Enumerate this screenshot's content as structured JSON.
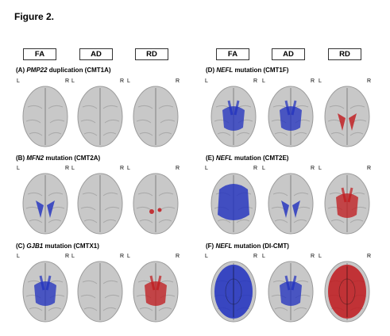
{
  "figure": {
    "title": "Figure 2."
  },
  "left_columns": [
    "FA",
    "AD",
    "RD"
  ],
  "right_columns": [
    "FA",
    "AD",
    "RD"
  ],
  "side_labels": {
    "left": "L",
    "right": "R"
  },
  "panels": [
    {
      "id": "A",
      "prefix": "(A) ",
      "gene": "PMP22",
      "suffix": " duplication (CMT1A)",
      "overlays": [
        "none",
        "none",
        "none"
      ]
    },
    {
      "id": "B",
      "prefix": "(B) ",
      "gene": "MFN2",
      "suffix": " mutation (CMT2A)",
      "overlays": [
        "blue-small",
        "none",
        "red-tiny"
      ]
    },
    {
      "id": "C",
      "prefix": "(C) ",
      "gene": "GJB1",
      "suffix": " mutation (CMTX1)",
      "overlays": [
        "blue-medium",
        "none",
        "red-medium"
      ]
    },
    {
      "id": "D",
      "prefix": "(D) ",
      "gene": "NEFL",
      "suffix": " mutation (CMT1F)",
      "overlays": [
        "blue-medium",
        "blue-medium",
        "red-small"
      ]
    },
    {
      "id": "E",
      "prefix": "(E) ",
      "gene": "NEFL",
      "suffix": " mutation (CMT2E)",
      "overlays": [
        "blue-large",
        "blue-small",
        "red-medium"
      ]
    },
    {
      "id": "F",
      "prefix": "(F) ",
      "gene": "NEFL",
      "suffix": " mutation (DI-CMT)",
      "overlays": [
        "blue-full",
        "blue-medium",
        "red-full"
      ]
    }
  ],
  "colors": {
    "brain": "#c8c8c8",
    "blue": "#1f2fbf",
    "red": "#c0181c"
  }
}
